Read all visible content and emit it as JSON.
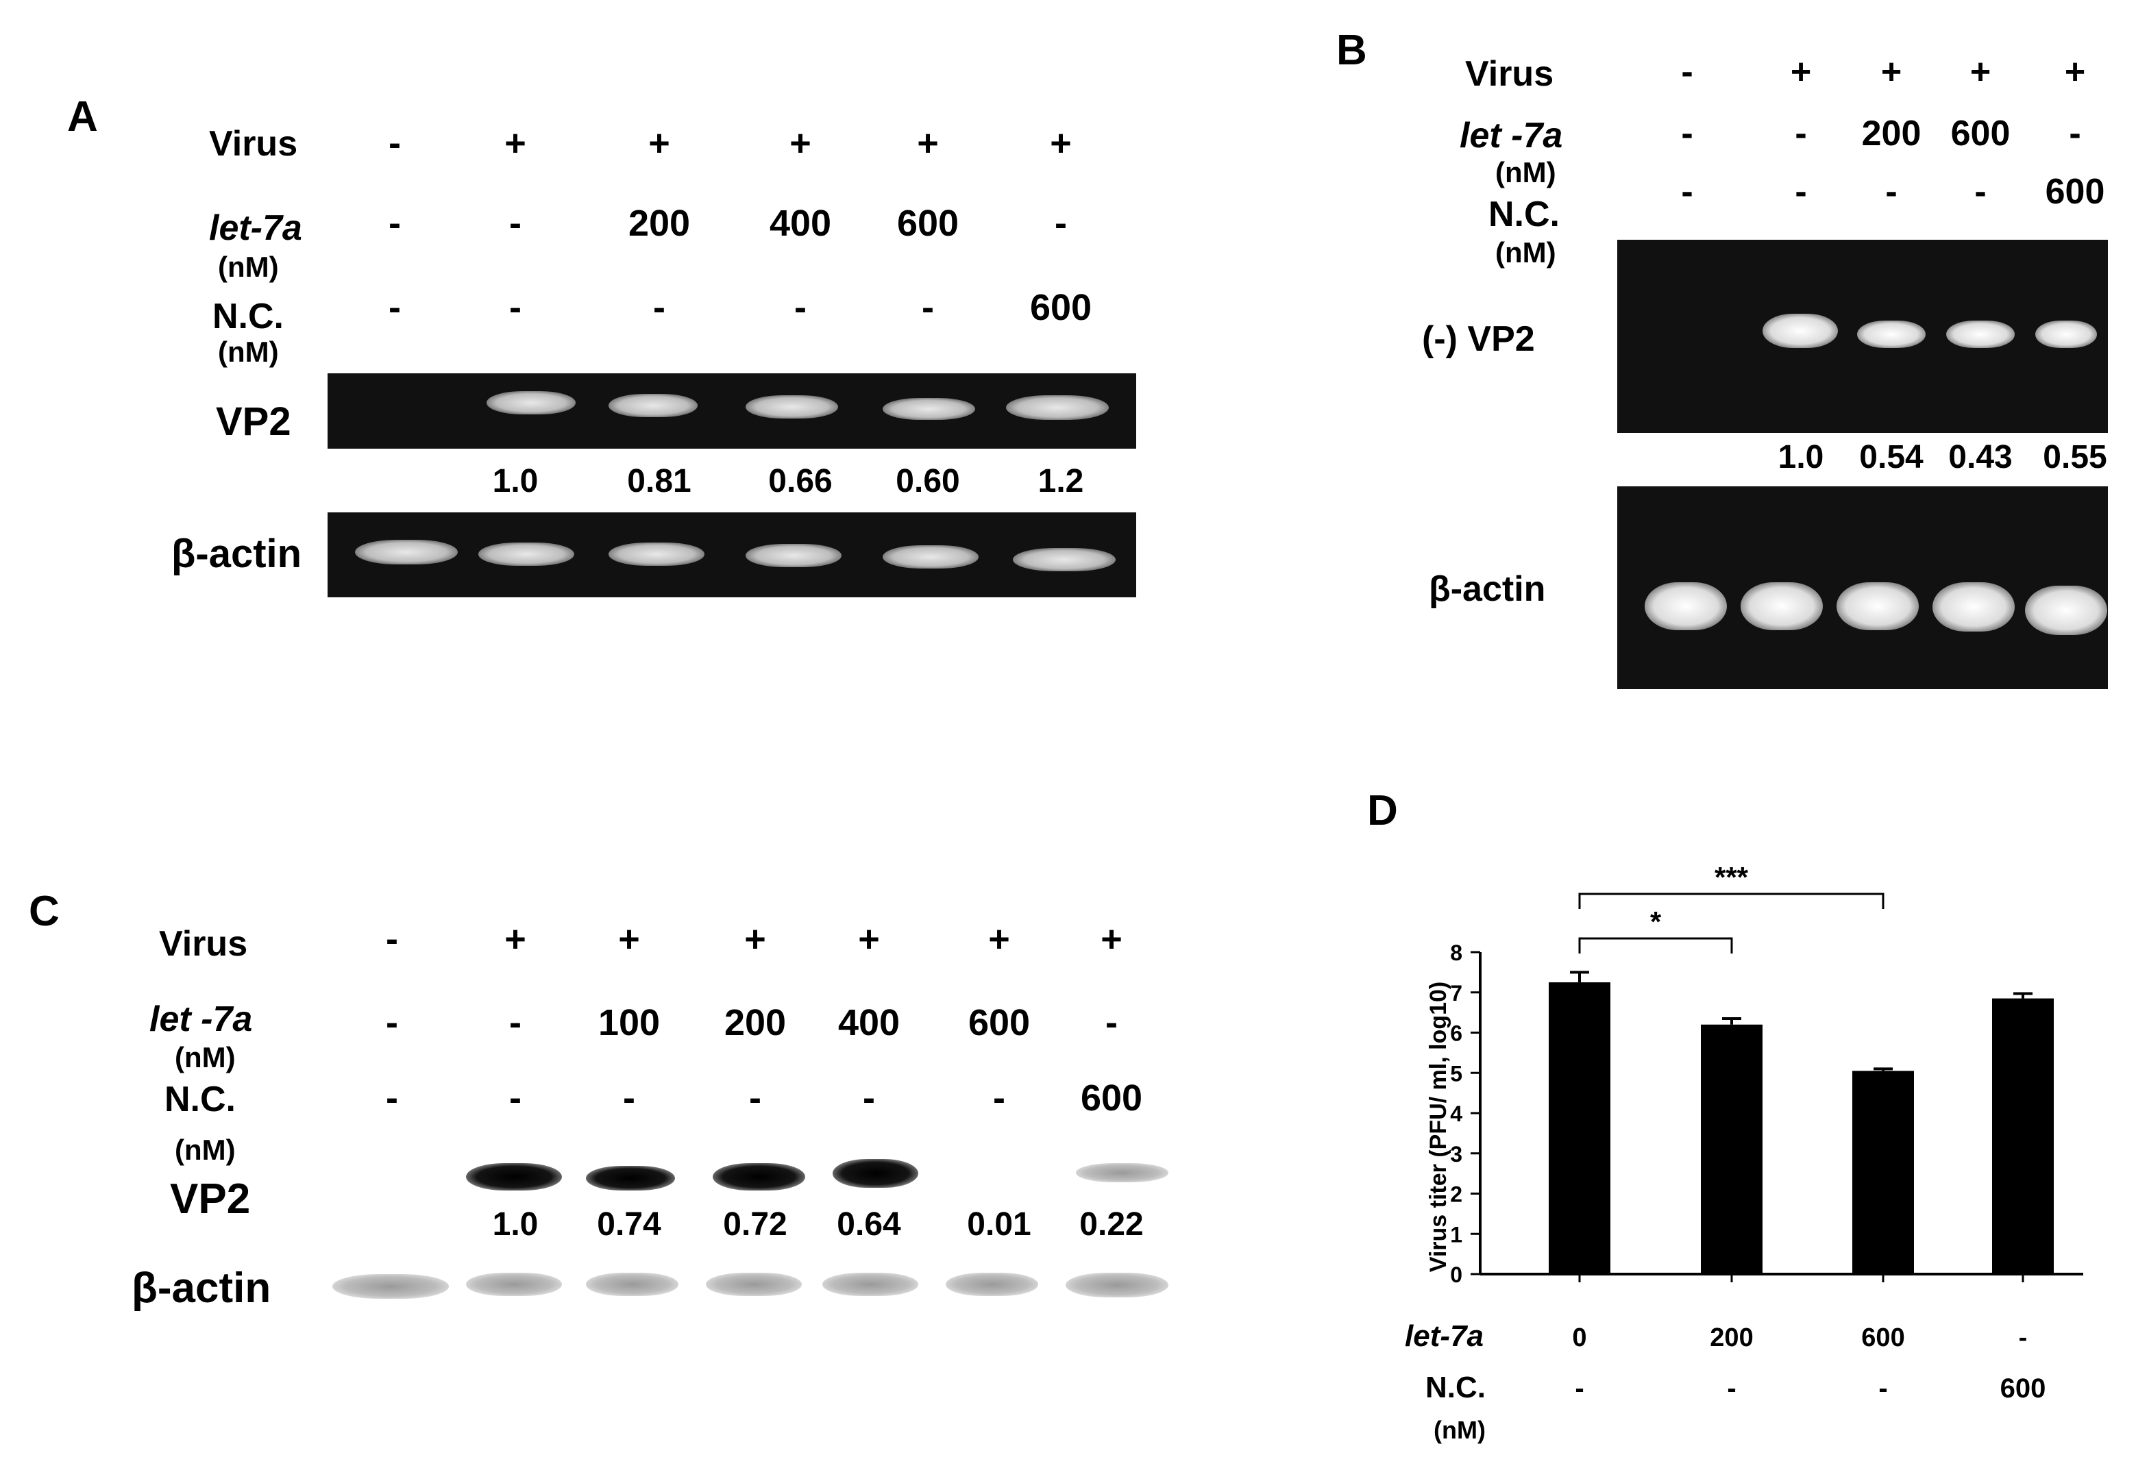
{
  "panel_a": {
    "letter": "A",
    "virus_label": "Virus",
    "let7a_label": "let-7a",
    "let7a_unit": "(nM)",
    "nc_label": "N.C.",
    "nc_unit": "(nM)",
    "virus": [
      "-",
      "+",
      "+",
      "+",
      "+",
      "+"
    ],
    "let7a": [
      "-",
      "-",
      "200",
      "400",
      "600",
      "-"
    ],
    "nc": [
      "-",
      "-",
      "-",
      "-",
      "-",
      "600"
    ],
    "vp2_label": "VP2",
    "actin_label": "β-actin",
    "quant": [
      "1.0",
      "0.81",
      "0.66",
      "0.60",
      "1.2"
    ]
  },
  "panel_b": {
    "letter": "B",
    "virus_label": "Virus",
    "let7a_label": "let -7a",
    "let7a_unit": "(nM)",
    "nc_label": "N.C.",
    "nc_unit": "(nM)",
    "virus": [
      "-",
      "+",
      "+",
      "+",
      "+"
    ],
    "let7a": [
      "-",
      "-",
      "200",
      "600",
      "-"
    ],
    "nc": [
      "-",
      "-",
      "-",
      "-",
      "600"
    ],
    "vp2_label": "(-) VP2",
    "actin_label": "β-actin",
    "quant": [
      "1.0",
      "0.54",
      "0.43",
      "0.55"
    ]
  },
  "panel_c": {
    "letter": "C",
    "virus_label": "Virus",
    "let7a_label": "let -7a",
    "let7a_unit": "(nM)",
    "nc_label": "N.C.",
    "nc_unit": "(nM)",
    "virus": [
      "-",
      "+",
      "+",
      "+",
      "+",
      "+",
      "+"
    ],
    "let7a": [
      "-",
      "-",
      "100",
      "200",
      "400",
      "600",
      "-"
    ],
    "nc": [
      "-",
      "-",
      "-",
      "-",
      "-",
      "-",
      "600"
    ],
    "vp2_label": "VP2",
    "actin_label": "β-actin",
    "quant": [
      "1.0",
      "0.74",
      "0.72",
      "0.64",
      "0.01",
      "0.22"
    ]
  },
  "panel_d": {
    "letter": "D",
    "chart_data": {
      "type": "bar",
      "categories": [
        "0",
        "200",
        "600",
        "-"
      ],
      "values": [
        7.25,
        6.2,
        5.05,
        6.85
      ],
      "errors": [
        0.25,
        0.15,
        0.05,
        0.12
      ],
      "ylabel": "Virus titer (PFU/ ml, log10)",
      "ylim": [
        0,
        8
      ],
      "yticks": [
        "0",
        "1",
        "2",
        "3",
        "4",
        "5",
        "6",
        "7",
        "8"
      ],
      "color": "#000000",
      "significance": [
        {
          "from": 0,
          "to": 1,
          "label": "*"
        },
        {
          "from": 0,
          "to": 2,
          "label": "***"
        }
      ],
      "let7a_label": "let-7a",
      "nc_label": "N.C.",
      "nc_unit": "(nM)",
      "nc_values": [
        "-",
        "-",
        "-",
        "600"
      ]
    }
  }
}
